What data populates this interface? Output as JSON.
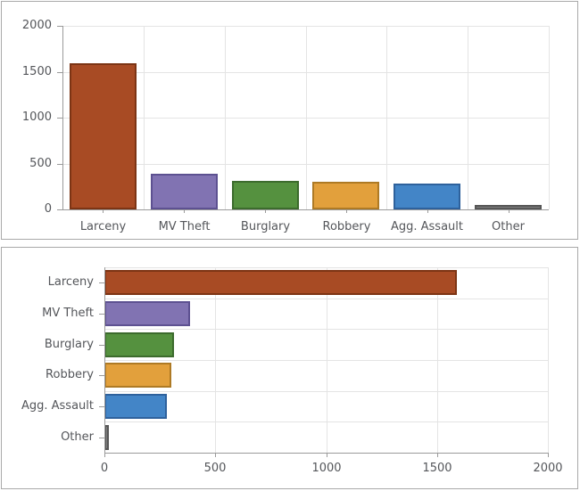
{
  "chart_data": [
    {
      "type": "bar",
      "orientation": "vertical",
      "title": "",
      "xlabel": "",
      "ylabel": "",
      "categories": [
        "Larceny",
        "MV Theft",
        "Burglary",
        "Robbery",
        "Agg. Assault",
        "Other"
      ],
      "values": [
        1590,
        385,
        315,
        300,
        280,
        20
      ],
      "ylim": [
        0,
        2000
      ],
      "yticks": [
        0,
        500,
        1000,
        1500,
        2000
      ],
      "grid": true,
      "legend": "none",
      "bar_fill_colors": [
        "#a84b24",
        "#8173b2",
        "#55913f",
        "#e2a03c",
        "#4385c7",
        "#7f7f7f"
      ],
      "bar_border_colors": [
        "#7c3414",
        "#5d5191",
        "#3c6b2d",
        "#ae7a25",
        "#2e619c",
        "#565656"
      ]
    },
    {
      "type": "bar",
      "orientation": "horizontal",
      "title": "",
      "xlabel": "",
      "ylabel": "",
      "categories": [
        "Larceny",
        "MV Theft",
        "Burglary",
        "Robbery",
        "Agg. Assault",
        "Other"
      ],
      "values": [
        1590,
        385,
        315,
        300,
        280,
        20
      ],
      "xlim": [
        0,
        2000
      ],
      "xticks": [
        0,
        500,
        1000,
        1500,
        2000
      ],
      "grid": true,
      "legend": "none",
      "bar_fill_colors": [
        "#a84b24",
        "#8173b2",
        "#55913f",
        "#e2a03c",
        "#4385c7",
        "#7f7f7f"
      ],
      "bar_border_colors": [
        "#7c3414",
        "#5d5191",
        "#3c6b2d",
        "#ae7a25",
        "#2e619c",
        "#565656"
      ]
    }
  ],
  "styles": {
    "axis_color": "#9a9a9a",
    "grid_color": "#e4e4e4",
    "label_color": "#54565a",
    "panel_border_color": "#a9a9a9",
    "background_color": "#ffffff"
  }
}
